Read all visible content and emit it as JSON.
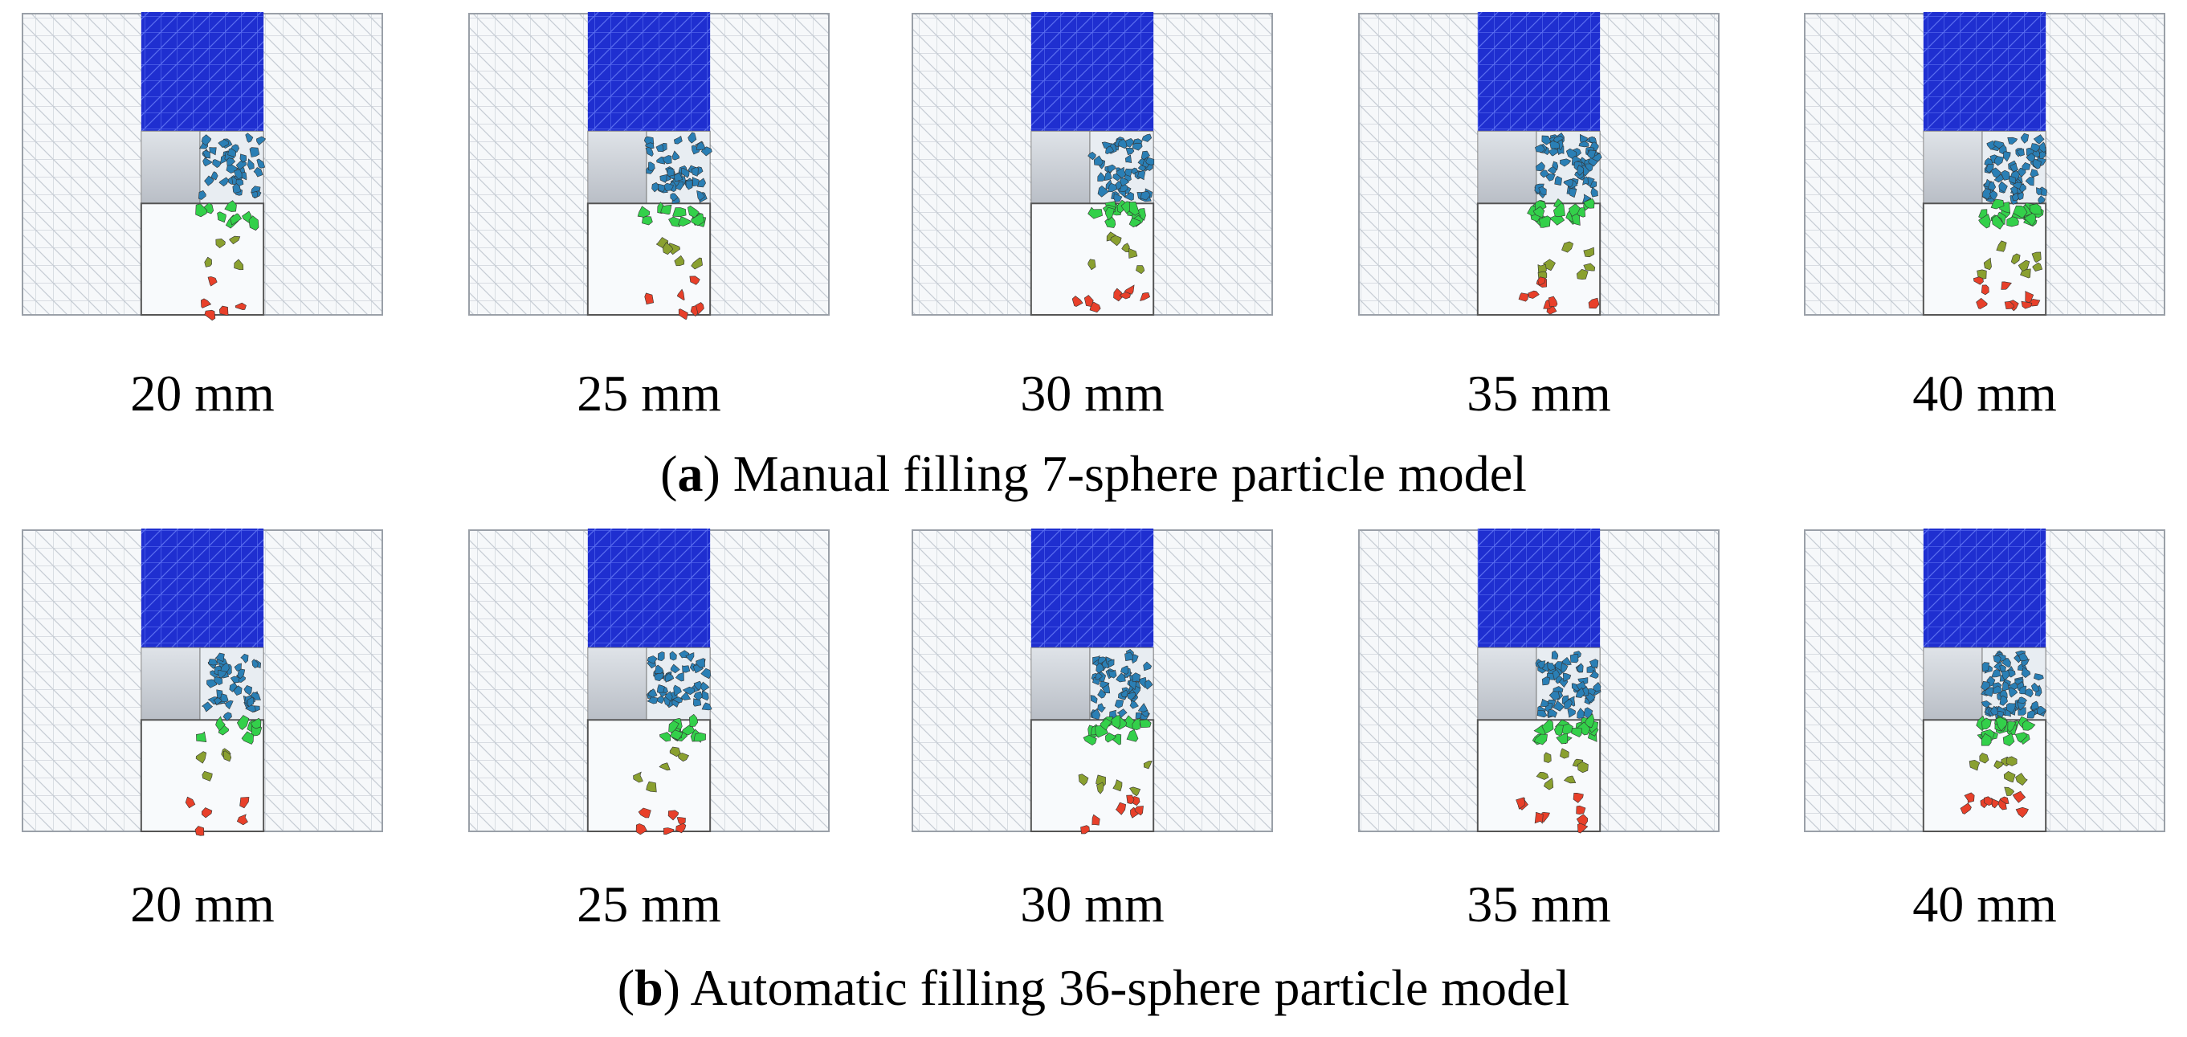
{
  "figure": {
    "rows": [
      {
        "panels": [
          "20 mm",
          "25 mm",
          "30 mm",
          "35 mm",
          "40 mm"
        ],
        "caption": {
          "open": "(",
          "letter": "a",
          "rest": ") Manual filling 7-sphere particle model"
        }
      },
      {
        "panels": [
          "20 mm",
          "25 mm",
          "30 mm",
          "35 mm",
          "40 mm"
        ],
        "caption": {
          "open": "(",
          "letter": "b",
          "rest": ") Automatic filling 36-sphere particle model"
        }
      }
    ]
  }
}
